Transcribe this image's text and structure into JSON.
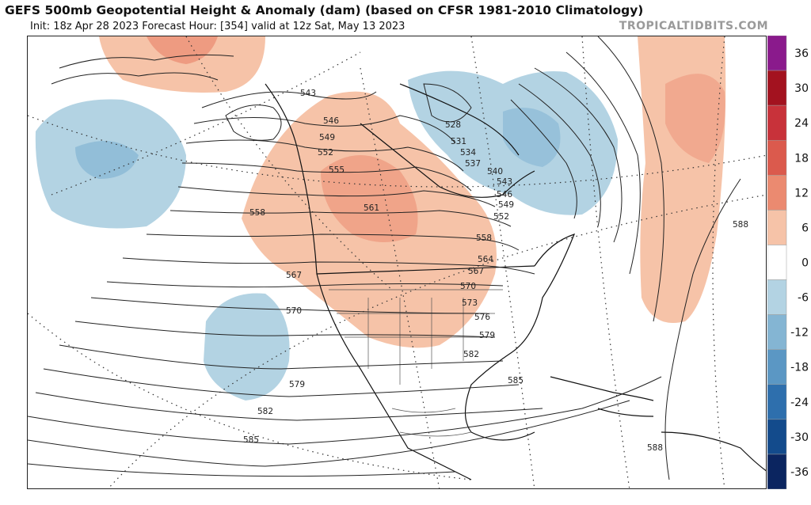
{
  "header": {
    "title": "GEFS 500mb Geopotential Height & Anomaly (dam) (based on CFSR 1981-2010 Climatology)",
    "subtitle": "Init: 18z Apr 28 2023   Forecast Hour: [354]   valid at 12z Sat, May 13 2023",
    "brand": "TROPICALTIDBITS.COM"
  },
  "colorbar": {
    "levels": [
      {
        "label": "36",
        "color": "#8a1a8c"
      },
      {
        "label": "30",
        "color": "#a3121f"
      },
      {
        "label": "24",
        "color": "#c8323a"
      },
      {
        "label": "18",
        "color": "#db5a4d"
      },
      {
        "label": "12",
        "color": "#eb8a70"
      },
      {
        "label": "6",
        "color": "#f6c3a8"
      },
      {
        "label": "0",
        "color": "#ffffff"
      },
      {
        "label": "-6",
        "color": "#b3d3e3"
      },
      {
        "label": "-12",
        "color": "#84b5d3"
      },
      {
        "label": "-18",
        "color": "#5b97c4"
      },
      {
        "label": "-24",
        "color": "#2e6fad"
      },
      {
        "label": "-30",
        "color": "#134b8c"
      },
      {
        "label": "-36",
        "color": "#0b2560"
      }
    ]
  },
  "contour_labels": [
    "543",
    "546",
    "549",
    "552",
    "555",
    "558",
    "561",
    "528",
    "531",
    "534",
    "537",
    "540",
    "543",
    "546",
    "549",
    "552",
    "558",
    "564",
    "567",
    "567",
    "570",
    "570",
    "573",
    "576",
    "579",
    "579",
    "582",
    "582",
    "585",
    "585",
    "588",
    "588"
  ]
}
